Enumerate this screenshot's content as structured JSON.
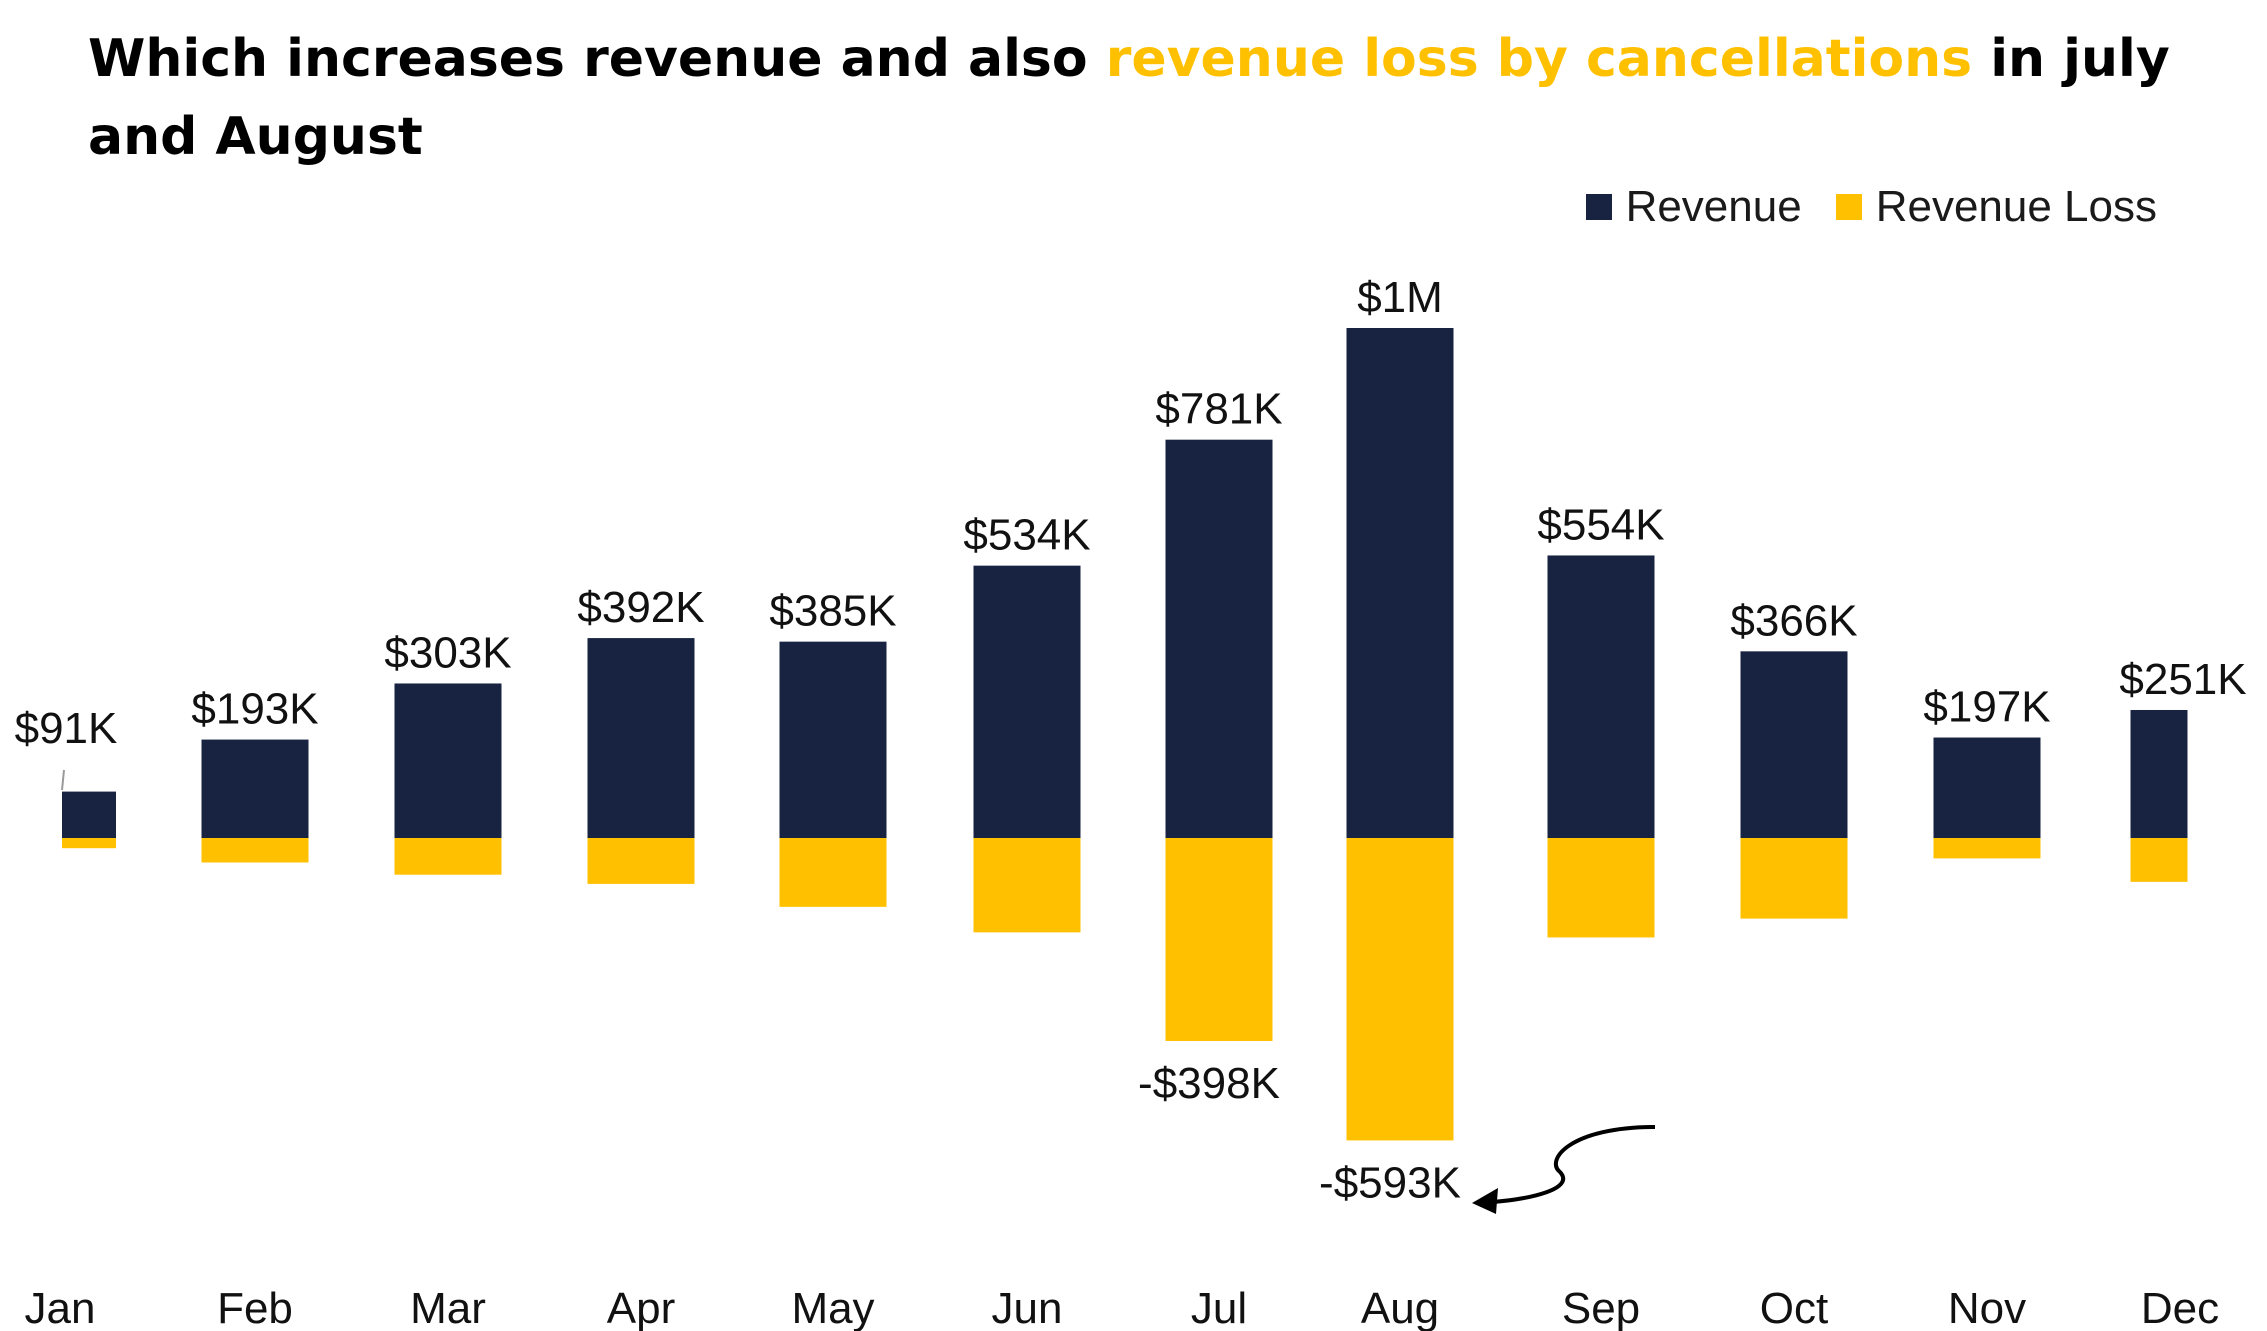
{
  "title": {
    "part1": "Which increases revenue and also ",
    "highlight": "revenue loss by cancellations",
    "part2": " in july and August"
  },
  "colors": {
    "revenue": "#172340",
    "revenue_loss": "#FFC000",
    "highlight_text": "#FFC000"
  },
  "legend": {
    "revenue": "Revenue",
    "revenue_loss": "Revenue Loss"
  },
  "chart_data": {
    "type": "bar",
    "stacked": true,
    "categories": [
      "Jan",
      "Feb",
      "Mar",
      "Apr",
      "May",
      "Jun",
      "Jul",
      "Aug",
      "Sep",
      "Oct",
      "Nov",
      "Dec"
    ],
    "series": [
      {
        "name": "Revenue",
        "values": [
          91000,
          193000,
          303000,
          392000,
          385000,
          534000,
          781000,
          1000000,
          554000,
          366000,
          197000,
          251000
        ],
        "labels": [
          "$91K",
          "$193K",
          "$303K",
          "$392K",
          "$385K",
          "$534K",
          "$781K",
          "$1M",
          "$554K",
          "$366K",
          "$197K",
          "$251K"
        ]
      },
      {
        "name": "Revenue Loss",
        "values": [
          -20000,
          -48000,
          -72000,
          -90000,
          -135000,
          -185000,
          -398000,
          -593000,
          -195000,
          -158000,
          -40000,
          -86000
        ],
        "labels": [
          "",
          "",
          "",
          "",
          "",
          "",
          "-$398K",
          "-$593K",
          "",
          "",
          "",
          ""
        ]
      }
    ],
    "legend_position": "top-right",
    "grid": false,
    "ylim": [
      -850000,
      1200000
    ]
  }
}
